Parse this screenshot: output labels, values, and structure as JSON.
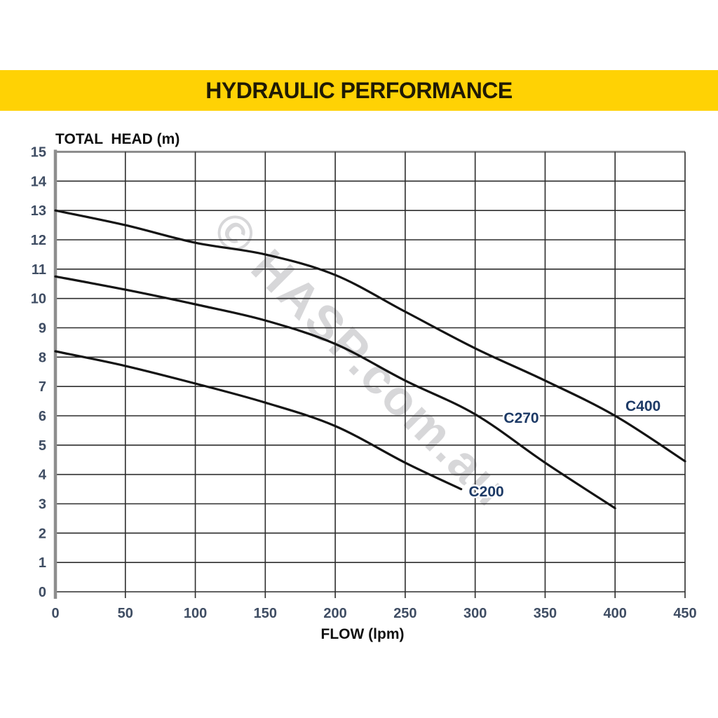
{
  "banner": {
    "title": "HYDRAULIC PERFORMANCE",
    "background": "#FFD204",
    "text_color": "#1f1a05"
  },
  "watermark": {
    "text": "© HASP.com.au",
    "color": "rgba(110,110,118,0.28)"
  },
  "chart_data": {
    "type": "line",
    "title": "HYDRAULIC PERFORMANCE",
    "xlabel": "FLOW (lpm)",
    "ylabel": "TOTAL  HEAD (m)",
    "xlim": [
      0,
      450
    ],
    "ylim": [
      0,
      15
    ],
    "x_ticks": [
      0,
      50,
      100,
      150,
      200,
      250,
      300,
      350,
      400,
      450
    ],
    "y_ticks": [
      0,
      1,
      2,
      3,
      4,
      5,
      6,
      7,
      8,
      9,
      10,
      11,
      12,
      13,
      14,
      15
    ],
    "grid": "on",
    "legend_position": "inline-labels",
    "series": [
      {
        "name": "C200",
        "label_at": [
          308,
          3.42
        ],
        "points": [
          [
            0,
            8.2
          ],
          [
            50,
            7.7
          ],
          [
            100,
            7.1
          ],
          [
            150,
            6.45
          ],
          [
            200,
            5.65
          ],
          [
            250,
            4.4
          ],
          [
            290,
            3.5
          ]
        ]
      },
      {
        "name": "C270",
        "label_at": [
          333,
          5.93
        ],
        "points": [
          [
            0,
            10.75
          ],
          [
            50,
            10.3
          ],
          [
            100,
            9.8
          ],
          [
            150,
            9.25
          ],
          [
            200,
            8.45
          ],
          [
            250,
            7.2
          ],
          [
            300,
            6.05
          ],
          [
            350,
            4.4
          ],
          [
            400,
            2.85
          ]
        ]
      },
      {
        "name": "C400",
        "label_at": [
          420,
          6.34
        ],
        "points": [
          [
            0,
            13.0
          ],
          [
            50,
            12.5
          ],
          [
            100,
            11.9
          ],
          [
            150,
            11.5
          ],
          [
            200,
            10.8
          ],
          [
            250,
            9.55
          ],
          [
            300,
            8.3
          ],
          [
            350,
            7.2
          ],
          [
            400,
            6.0
          ],
          [
            450,
            4.45
          ]
        ]
      }
    ],
    "colors": {
      "curve": "#141414",
      "grid": "#2d2d2d",
      "axis_gray": "#8d8d8d",
      "tick_label": "#3f4d63",
      "curve_label": "#1d3a66"
    }
  }
}
